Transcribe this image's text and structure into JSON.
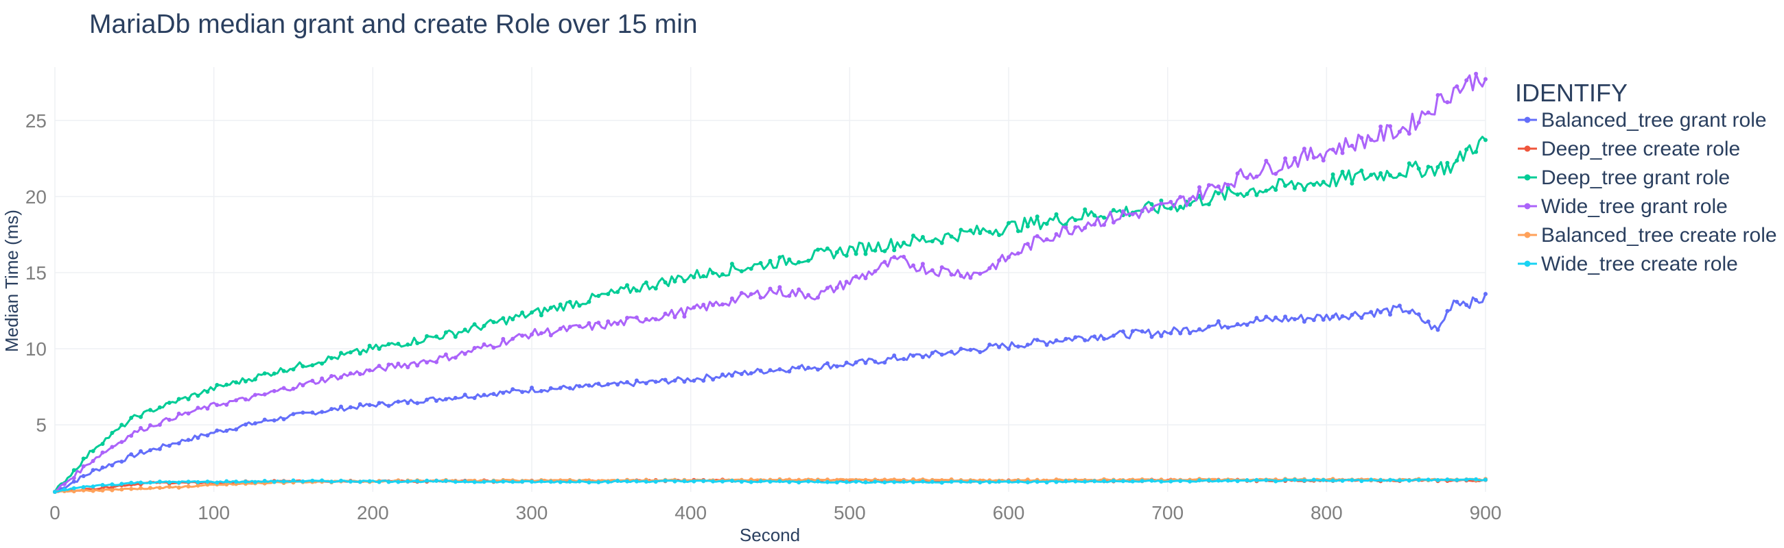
{
  "chart_data": {
    "type": "line",
    "title": "MariaDb median grant and create Role over 15 min",
    "xlabel": "Second",
    "ylabel": "Median Time (ms)",
    "xlim": [
      0,
      900
    ],
    "ylim": [
      0.6,
      28.5
    ],
    "xticks": [
      0,
      100,
      200,
      300,
      400,
      500,
      600,
      700,
      800,
      900
    ],
    "yticks": [
      5,
      10,
      15,
      20,
      25
    ],
    "grid": true,
    "legend": {
      "title": "IDENTIFY",
      "placement": "right"
    },
    "series": [
      {
        "name": "Balanced_tree grant role",
        "color": "#636efa",
        "x": [
          0,
          25,
          50,
          75,
          100,
          125,
          150,
          175,
          200,
          250,
          300,
          350,
          400,
          450,
          500,
          550,
          600,
          650,
          700,
          750,
          800,
          850,
          870,
          880,
          890,
          900
        ],
        "y": [
          0.6,
          2.0,
          3.0,
          3.8,
          4.5,
          5.1,
          5.6,
          6.0,
          6.3,
          6.8,
          7.3,
          7.6,
          8.0,
          8.6,
          9.0,
          9.6,
          10.2,
          10.8,
          11.1,
          11.8,
          12.1,
          12.6,
          11.2,
          13.2,
          13.0,
          13.3
        ]
      },
      {
        "name": "Deep_tree create role",
        "color": "#ef553b",
        "x": [
          0,
          25,
          40,
          60,
          80,
          100,
          150,
          200,
          300,
          400,
          500,
          600,
          700,
          800,
          900
        ],
        "y": [
          0.6,
          0.8,
          1.0,
          1.2,
          1.2,
          1.2,
          1.3,
          1.3,
          1.3,
          1.35,
          1.35,
          1.3,
          1.35,
          1.35,
          1.35
        ]
      },
      {
        "name": "Deep_tree grant role",
        "color": "#00cc96",
        "x": [
          0,
          25,
          50,
          75,
          100,
          125,
          150,
          175,
          200,
          250,
          300,
          350,
          400,
          450,
          500,
          550,
          600,
          650,
          700,
          750,
          800,
          850,
          880,
          890,
          900
        ],
        "y": [
          0.6,
          3.5,
          5.5,
          6.5,
          7.4,
          8.1,
          8.8,
          9.4,
          10.0,
          11.0,
          12.3,
          13.6,
          14.8,
          15.6,
          16.5,
          17.2,
          18.0,
          18.8,
          19.3,
          20.4,
          21.0,
          21.7,
          22.0,
          23.2,
          23.6
        ]
      },
      {
        "name": "Wide_tree grant role",
        "color": "#ab63fa",
        "x": [
          0,
          25,
          50,
          75,
          100,
          125,
          150,
          175,
          200,
          250,
          300,
          350,
          400,
          450,
          480,
          500,
          530,
          550,
          580,
          600,
          620,
          650,
          700,
          750,
          800,
          850,
          880,
          900
        ],
        "y": [
          0.6,
          2.8,
          4.5,
          5.5,
          6.3,
          6.8,
          7.5,
          8.1,
          8.6,
          9.5,
          11.0,
          11.6,
          12.5,
          13.8,
          13.5,
          14.4,
          15.8,
          15.2,
          14.9,
          16.0,
          17.2,
          18.3,
          19.3,
          21.5,
          23.0,
          24.5,
          27.0,
          28.0
        ]
      },
      {
        "name": "Balanced_tree create role",
        "color": "#ffa15a",
        "x": [
          0,
          25,
          50,
          75,
          100,
          125,
          150,
          200,
          300,
          400,
          500,
          600,
          700,
          800,
          900
        ],
        "y": [
          0.6,
          0.7,
          0.8,
          0.9,
          1.05,
          1.15,
          1.25,
          1.3,
          1.35,
          1.35,
          1.4,
          1.35,
          1.4,
          1.4,
          1.4
        ]
      },
      {
        "name": "Wide_tree create role",
        "color": "#19d3f3",
        "x": [
          0,
          10,
          25,
          40,
          50,
          75,
          100,
          150,
          200,
          300,
          400,
          500,
          600,
          700,
          800,
          900
        ],
        "y": [
          0.6,
          0.8,
          1.0,
          1.1,
          1.2,
          1.25,
          1.25,
          1.3,
          1.3,
          1.25,
          1.3,
          1.25,
          1.25,
          1.3,
          1.35,
          1.4
        ]
      }
    ]
  }
}
